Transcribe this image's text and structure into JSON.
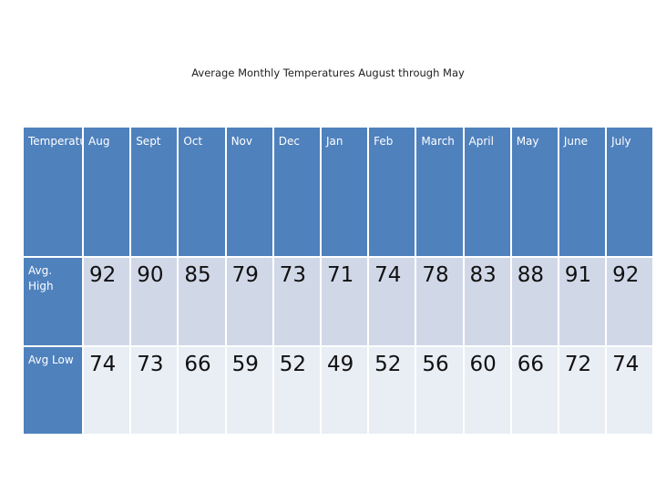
{
  "title": "Average Monthly Temperatures August through May",
  "header": {
    "corner": "Temperature",
    "months": [
      "Aug",
      "Sept",
      "Oct",
      "Nov",
      "Dec",
      "Jan",
      "Feb",
      "March",
      "April",
      "May",
      "June",
      "July"
    ]
  },
  "rows": [
    {
      "label": "Avg. High",
      "values": [
        "92",
        "90",
        "85",
        "79",
        "73",
        "71",
        "74",
        "78",
        "83",
        "88",
        "91",
        "92"
      ]
    },
    {
      "label": "Avg Low",
      "values": [
        "74",
        "73",
        "66",
        "59",
        "52",
        "49",
        "52",
        "56",
        "60",
        "66",
        "72",
        "74"
      ]
    }
  ],
  "colors": {
    "header_fill": "#4f81bd",
    "row_band_1": "#d0d8e8",
    "row_band_2": "#e9edf4"
  }
}
